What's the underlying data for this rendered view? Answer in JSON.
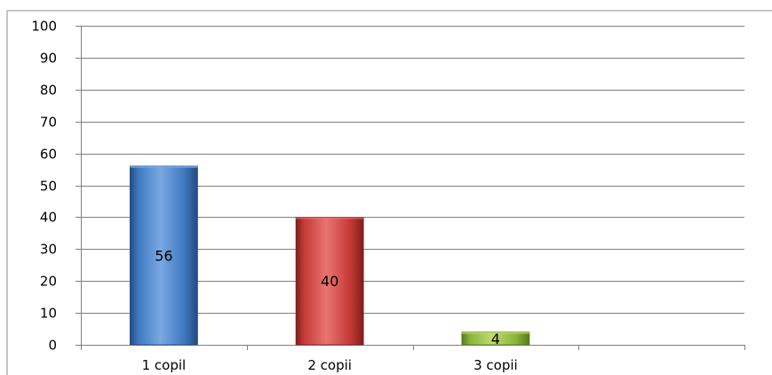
{
  "chart_data": {
    "type": "bar",
    "title": "",
    "xlabel": "",
    "ylabel": "",
    "categories": [
      "1 copil",
      "2 copii",
      "3 copii",
      ""
    ],
    "values": [
      56,
      40,
      4,
      null
    ],
    "data_labels": [
      "56",
      "40",
      "4",
      ""
    ],
    "ylim": [
      0,
      100
    ],
    "yticks": [
      "0",
      "10",
      "20",
      "30",
      "40",
      "50",
      "60",
      "70",
      "80",
      "90",
      "100"
    ],
    "grid": true,
    "legend": "none",
    "colors": [
      "#3f78c0",
      "#c63a37",
      "#8ab43a"
    ],
    "colors_light": [
      "#7aa9e3",
      "#e87572",
      "#bfdd6e"
    ],
    "colors_dark": [
      "#224a80",
      "#7e1e1c",
      "#587a1f"
    ]
  }
}
